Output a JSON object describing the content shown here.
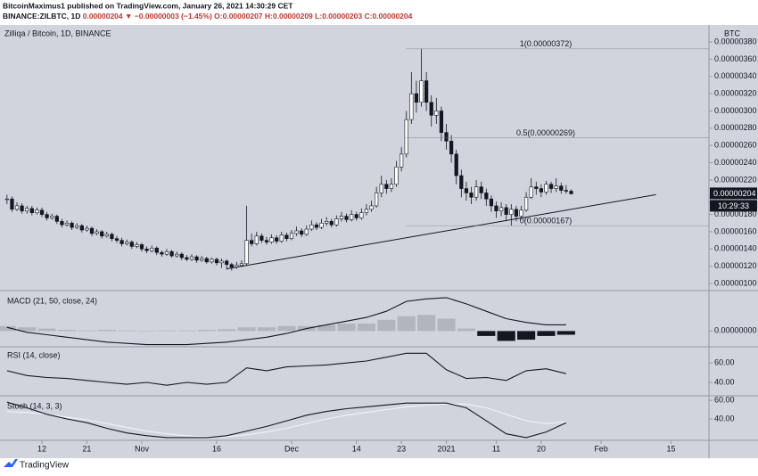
{
  "header": {
    "publisher": "BitcoinMaximus1 published on TradingView.com, January 26, 2021 14:30:29 CET",
    "symbol": "BINANCE:ZILBTC, 1D",
    "last": "0.00000204",
    "arrow": "▼",
    "change": "−0.00000003 (−1.45%)",
    "open": "O:0.00000207",
    "high": "H:0.00000209",
    "low": "L:0.00000203",
    "close": "C:0.00000204"
  },
  "footer": {
    "logo": "TradingView"
  },
  "chart_data": [
    {
      "type": "candlestick",
      "title": "Zilliqa / Bitcoin, 1D, BINANCE",
      "axis_unit": "BTC",
      "xlim": [
        -1.4,
        140.6
      ],
      "xticks": [
        {
          "value": 7,
          "label": "12"
        },
        {
          "value": 16,
          "label": "21"
        },
        {
          "value": 27,
          "label": "Nov"
        },
        {
          "value": 42,
          "label": "16"
        },
        {
          "value": 57,
          "label": "Dec"
        },
        {
          "value": 70,
          "label": "14"
        },
        {
          "value": 79,
          "label": "23"
        },
        {
          "value": 88,
          "label": "2021"
        },
        {
          "value": 98,
          "label": "11"
        },
        {
          "value": 107,
          "label": "20"
        },
        {
          "value": 119,
          "label": "Feb"
        },
        {
          "value": 133,
          "label": "15"
        }
      ],
      "ylim": [
        9.28e-07,
        3.976e-06
      ],
      "yticks": [
        {
          "value": 1e-06,
          "label": "0.00000100"
        },
        {
          "value": 1.2e-06,
          "label": "0.00000120"
        },
        {
          "value": 1.4e-06,
          "label": "0.00000140"
        },
        {
          "value": 1.6e-06,
          "label": "0.00000160"
        },
        {
          "value": 1.8e-06,
          "label": "0.00000180"
        },
        {
          "value": 2e-06,
          "label": "0.00000200"
        },
        {
          "value": 2.2e-06,
          "label": "0.00000220"
        },
        {
          "value": 2.4e-06,
          "label": "0.00000240"
        },
        {
          "value": 2.6e-06,
          "label": "0.00000260"
        },
        {
          "value": 2.8e-06,
          "label": "0.00000280"
        },
        {
          "value": 3e-06,
          "label": "0.00000300"
        },
        {
          "value": 3.2e-06,
          "label": "0.00000320"
        },
        {
          "value": 3.4e-06,
          "label": "0.00000340"
        },
        {
          "value": 3.6e-06,
          "label": "0.00000360"
        },
        {
          "value": 3.8e-06,
          "label": "0.00000380"
        }
      ],
      "up_color": "#ffffff",
      "down_color": "#131722",
      "close": [
        1.98e-06,
        1.86e-06,
        1.9e-06,
        1.84e-06,
        1.87e-06,
        1.82e-06,
        1.85e-06,
        1.8e-06,
        1.76e-06,
        1.78e-06,
        1.72e-06,
        1.68e-06,
        1.7e-06,
        1.65e-06,
        1.67e-06,
        1.62e-06,
        1.64e-06,
        1.58e-06,
        1.6e-06,
        1.55e-06,
        1.57e-06,
        1.52e-06,
        1.5e-06,
        1.46e-06,
        1.48e-06,
        1.43e-06,
        1.45e-06,
        1.4e-06,
        1.38e-06,
        1.41e-06,
        1.36e-06,
        1.34e-06,
        1.37e-06,
        1.32e-06,
        1.34e-06,
        1.3e-06,
        1.28e-06,
        1.31e-06,
        1.27e-06,
        1.29e-06,
        1.25e-06,
        1.28e-06,
        1.24e-06,
        1.26e-06,
        1.22e-06,
        1.19e-06,
        1.21e-06,
        1.23e-06,
        1.5e-06,
        1.46e-06,
        1.55e-06,
        1.5e-06,
        1.48e-06,
        1.53e-06,
        1.49e-06,
        1.56e-06,
        1.52e-06,
        1.58e-06,
        1.61e-06,
        1.57e-06,
        1.63e-06,
        1.68e-06,
        1.65e-06,
        1.7e-06,
        1.72e-06,
        1.68e-06,
        1.75e-06,
        1.78e-06,
        1.74e-06,
        1.8e-06,
        1.76e-06,
        1.82e-06,
        1.86e-06,
        1.9e-06,
        2.05e-06,
        2.15e-06,
        2.1e-06,
        2.15e-06,
        2.35e-06,
        2.5e-06,
        2.9e-06,
        3.2e-06,
        3.1e-06,
        3.35e-06,
        3.1e-06,
        2.95e-06,
        3e-06,
        2.75e-06,
        2.65e-06,
        2.5e-06,
        2.25e-06,
        2.1e-06,
        2.05e-06,
        2e-06,
        2.12e-06,
        2.05e-06,
        1.98e-06,
        1.9e-06,
        1.84e-06,
        1.88e-06,
        1.8e-06,
        1.86e-06,
        1.78e-06,
        1.85e-06,
        2e-06,
        2.12e-06,
        2.1e-06,
        2.06e-06,
        2.15e-06,
        2.1e-06,
        2.13e-06,
        2.08e-06,
        2.07e-06,
        2.04e-06
      ],
      "high": [
        2.03e-06,
        2.01e-06,
        1.94e-06,
        1.93e-06,
        1.9e-06,
        1.9e-06,
        1.88e-06,
        1.88e-06,
        1.83e-06,
        1.81e-06,
        1.8e-06,
        1.75e-06,
        1.73e-06,
        1.72e-06,
        1.7e-06,
        1.69e-06,
        1.67e-06,
        1.66e-06,
        1.63e-06,
        1.62e-06,
        1.6e-06,
        1.59e-06,
        1.55e-06,
        1.53e-06,
        1.51e-06,
        1.5e-06,
        1.48e-06,
        1.47e-06,
        1.43e-06,
        1.44e-06,
        1.43e-06,
        1.38e-06,
        1.4e-06,
        1.39e-06,
        1.37e-06,
        1.36e-06,
        1.33e-06,
        1.34e-06,
        1.33e-06,
        1.32e-06,
        1.31e-06,
        1.3e-06,
        1.3e-06,
        1.29e-06,
        1.28e-06,
        1.24e-06,
        1.25e-06,
        1.27e-06,
        1.9e-06,
        1.58e-06,
        1.6e-06,
        1.58e-06,
        1.54e-06,
        1.57e-06,
        1.56e-06,
        1.6e-06,
        1.59e-06,
        1.62e-06,
        1.66e-06,
        1.64e-06,
        1.67e-06,
        1.73e-06,
        1.71e-06,
        1.75e-06,
        1.77e-06,
        1.75e-06,
        1.79e-06,
        1.83e-06,
        1.81e-06,
        1.85e-06,
        1.83e-06,
        1.87e-06,
        1.92e-06,
        1.96e-06,
        2.12e-06,
        2.25e-06,
        2.2e-06,
        2.22e-06,
        2.42e-06,
        2.58e-06,
        3e-06,
        3.45e-06,
        3.35e-06,
        3.72e-06,
        3.45e-06,
        3.18e-06,
        3.15e-06,
        3.05e-06,
        2.85e-06,
        2.72e-06,
        2.55e-06,
        2.32e-06,
        2.18e-06,
        2.12e-06,
        2.2e-06,
        2.18e-06,
        2.1e-06,
        2.02e-06,
        1.95e-06,
        1.94e-06,
        1.92e-06,
        1.92e-06,
        1.9e-06,
        1.9e-06,
        2.06e-06,
        2.22e-06,
        2.18e-06,
        2.15e-06,
        2.19e-06,
        2.18e-06,
        2.22e-06,
        2.17e-06,
        2.14e-06,
        2.09e-06
      ],
      "low": [
        1.92e-06,
        1.83e-06,
        1.84e-06,
        1.81e-06,
        1.81e-06,
        1.79e-06,
        1.8e-06,
        1.77e-06,
        1.73e-06,
        1.74e-06,
        1.69e-06,
        1.65e-06,
        1.66e-06,
        1.62e-06,
        1.63e-06,
        1.59e-06,
        1.6e-06,
        1.55e-06,
        1.56e-06,
        1.52e-06,
        1.53e-06,
        1.49e-06,
        1.47e-06,
        1.43e-06,
        1.44e-06,
        1.4e-06,
        1.41e-06,
        1.37e-06,
        1.35e-06,
        1.36e-06,
        1.33e-06,
        1.31e-06,
        1.32e-06,
        1.3e-06,
        1.3e-06,
        1.27e-06,
        1.26e-06,
        1.26e-06,
        1.24e-06,
        1.25e-06,
        1.23e-06,
        1.23e-06,
        1.21e-06,
        1.18e-06,
        1.16e-06,
        1.15e-06,
        1.17e-06,
        1.19e-06,
        1.21e-06,
        1.43e-06,
        1.44e-06,
        1.47e-06,
        1.45e-06,
        1.46e-06,
        1.46e-06,
        1.47e-06,
        1.49e-06,
        1.5e-06,
        1.55e-06,
        1.54e-06,
        1.55e-06,
        1.61e-06,
        1.62e-06,
        1.63e-06,
        1.67e-06,
        1.65e-06,
        1.66e-06,
        1.72e-06,
        1.71e-06,
        1.72e-06,
        1.73e-06,
        1.74e-06,
        1.79e-06,
        1.83e-06,
        1.88e-06,
        2e-06,
        2.04e-06,
        2.06e-06,
        2.12e-06,
        2.3e-06,
        2.46e-06,
        2.85e-06,
        2.98e-06,
        3.05e-06,
        3e-06,
        2.82e-06,
        2.85e-06,
        2.65e-06,
        2.55e-06,
        2.4e-06,
        2.15e-06,
        2e-06,
        1.96e-06,
        1.92e-06,
        1.96e-06,
        1.98e-06,
        1.9e-06,
        1.83e-06,
        1.76e-06,
        1.78e-06,
        1.72e-06,
        1.67e-06,
        1.72e-06,
        1.74e-06,
        1.83e-06,
        1.98e-06,
        2.03e-06,
        2e-06,
        2.03e-06,
        2.05e-06,
        2.06e-06,
        2.04e-06,
        2.04e-06,
        2.03e-06
      ],
      "trendline": {
        "x": [
          44,
          130
        ],
        "y": [
          1.17e-06,
          2.03e-06
        ],
        "color": "#131722"
      },
      "fib": [
        {
          "label": "1(0.00000372)",
          "value": 3.72e-06
        },
        {
          "label": "0.5(0.00000269)",
          "value": 2.69e-06
        },
        {
          "label": "0(0.00000167)",
          "value": 1.67e-06
        }
      ],
      "last_price": {
        "value": 2.04e-06,
        "label": "0.00000204"
      },
      "countdown": "10:29:33"
    },
    {
      "type": "indicator",
      "title": "MACD (21, 50, close, 24)",
      "ylim": [
        -1.2e-08,
        3.2e-08
      ],
      "yticks": [
        {
          "value": 0,
          "label": "0.00000000"
        }
      ],
      "x": [
        0,
        4,
        8,
        12,
        16,
        20,
        24,
        28,
        32,
        36,
        40,
        44,
        48,
        52,
        56,
        60,
        64,
        68,
        72,
        76,
        80,
        84,
        88,
        92,
        96,
        100,
        104,
        108,
        112
      ],
      "series": [
        {
          "type": "bar",
          "color": "#b2b5be",
          "negative_color": "#131722",
          "values": [
            4e-09,
            3e-09,
            2e-09,
            1e-09,
            5e-10,
            1e-09,
            5e-10,
            0,
            5e-10,
            5e-10,
            1e-09,
            1.5e-09,
            3e-09,
            3e-09,
            4e-09,
            4e-09,
            5e-09,
            6e-09,
            6e-09,
            9e-09,
            1.2e-08,
            1.3e-08,
            1e-08,
            2e-09,
            -4e-09,
            -8e-09,
            -7e-09,
            -4e-09,
            -3e-09
          ]
        },
        {
          "type": "line",
          "color": "#131722",
          "values": [
            3e-09,
            -1e-09,
            -3e-09,
            -5e-09,
            -7e-09,
            -9e-09,
            -1e-08,
            -1.1e-08,
            -1.1e-08,
            -1.1e-08,
            -1e-08,
            -9e-09,
            -7e-09,
            -5e-09,
            -2e-09,
            2e-09,
            5e-09,
            8e-09,
            1.1e-08,
            1.6e-08,
            2.4e-08,
            2.6e-08,
            2.7e-08,
            2.2e-08,
            1.6e-08,
            1e-08,
            7e-09,
            5e-09,
            5e-09
          ]
        }
      ]
    },
    {
      "type": "indicator",
      "title": "RSI (14, close)",
      "ylim": [
        28,
        74
      ],
      "yticks": [
        {
          "value": 60,
          "label": "60.00"
        },
        {
          "value": 40,
          "label": "40.00"
        }
      ],
      "x": [
        0,
        4,
        8,
        12,
        16,
        20,
        24,
        28,
        32,
        36,
        40,
        44,
        48,
        52,
        56,
        60,
        64,
        68,
        72,
        76,
        80,
        84,
        88,
        92,
        96,
        100,
        104,
        108,
        112
      ],
      "series": [
        {
          "type": "line",
          "color": "#131722",
          "values": [
            52,
            47,
            45,
            44,
            42,
            40,
            38,
            40,
            37,
            40,
            38,
            40,
            55,
            52,
            56,
            57,
            58,
            60,
            62,
            66,
            70,
            70,
            53,
            44,
            45,
            42,
            52,
            54,
            49
          ]
        }
      ]
    },
    {
      "type": "indicator",
      "title": "Stoch (14, 3, 3)",
      "ylim": [
        18,
        62
      ],
      "yticks": [
        {
          "value": 60,
          "label": "60.00"
        },
        {
          "value": 40,
          "label": "40.00"
        }
      ],
      "x": [
        0,
        4,
        8,
        12,
        16,
        20,
        24,
        28,
        32,
        36,
        40,
        44,
        48,
        52,
        56,
        60,
        64,
        68,
        72,
        76,
        80,
        84,
        88,
        92,
        96,
        100,
        104,
        108,
        112
      ],
      "series": [
        {
          "type": "line",
          "color": "#f0f3fa",
          "values": [
            48,
            47,
            45,
            42,
            39,
            35,
            31,
            27,
            24,
            22,
            21,
            21,
            23,
            26,
            30,
            35,
            40,
            44,
            47,
            50,
            53,
            55,
            56,
            56,
            52,
            45,
            38,
            35,
            37
          ]
        },
        {
          "type": "line",
          "color": "#131722",
          "values": [
            58,
            52,
            45,
            40,
            36,
            30,
            25,
            22,
            20,
            20,
            20,
            22,
            27,
            32,
            38,
            44,
            48,
            51,
            53,
            55,
            57,
            57,
            57,
            52,
            38,
            24,
            20,
            26,
            36
          ]
        }
      ]
    }
  ]
}
